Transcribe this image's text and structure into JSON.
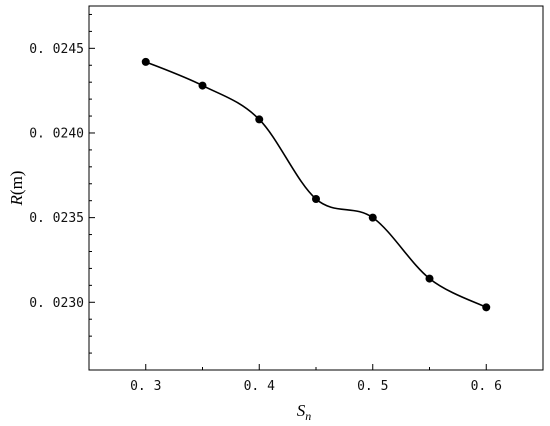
{
  "chart_data": {
    "type": "line",
    "x": [
      0.3,
      0.35,
      0.4,
      0.45,
      0.5,
      0.55,
      0.6
    ],
    "y": [
      0.02442,
      0.02428,
      0.02408,
      0.02361,
      0.0235,
      0.02314,
      0.02297
    ],
    "xlim": [
      0.25,
      0.65
    ],
    "ylim": [
      0.0226,
      0.02475
    ],
    "xticks": [
      0.3,
      0.4,
      0.5,
      0.6
    ],
    "xtick_labels": [
      "0. 3",
      "0. 4",
      "0. 5",
      "0. 6"
    ],
    "yticks": [
      0.023,
      0.0235,
      0.024,
      0.0245
    ],
    "ytick_labels": [
      "0. 0230",
      "0. 0235",
      "0. 0240",
      "0. 0245"
    ],
    "xlabel": {
      "main": "S",
      "sub": "n"
    },
    "ylabel": {
      "italic": "R",
      "rest": "(m)"
    },
    "grid": false,
    "line_color": "#000000",
    "marker": "filled-circle"
  }
}
